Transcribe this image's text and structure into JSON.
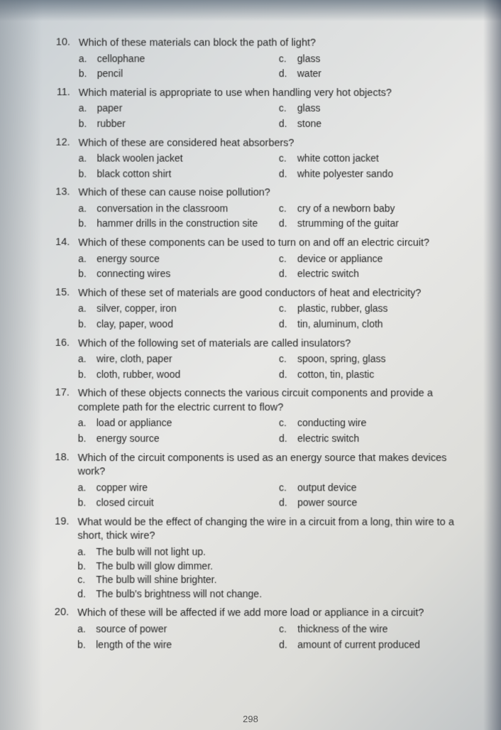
{
  "page_number": "298",
  "questions": [
    {
      "num": "10.",
      "text": "Which of these materials can block the path of light?",
      "layout": "grid",
      "opts": [
        {
          "l": "a.",
          "t": "cellophane"
        },
        {
          "l": "c.",
          "t": "glass"
        },
        {
          "l": "b.",
          "t": "pencil"
        },
        {
          "l": "d.",
          "t": "water"
        }
      ]
    },
    {
      "num": "11.",
      "text": "Which material is appropriate to use when handling very hot objects?",
      "layout": "grid",
      "opts": [
        {
          "l": "a.",
          "t": "paper"
        },
        {
          "l": "c.",
          "t": "glass"
        },
        {
          "l": "b.",
          "t": "rubber"
        },
        {
          "l": "d.",
          "t": "stone"
        }
      ]
    },
    {
      "num": "12.",
      "text": "Which of these are considered heat absorbers?",
      "layout": "grid",
      "opts": [
        {
          "l": "a.",
          "t": "black woolen jacket"
        },
        {
          "l": "c.",
          "t": "white cotton jacket"
        },
        {
          "l": "b.",
          "t": "black cotton shirt"
        },
        {
          "l": "d.",
          "t": "white polyester sando"
        }
      ]
    },
    {
      "num": "13.",
      "text": "Which of these can cause noise pollution?",
      "layout": "grid",
      "opts": [
        {
          "l": "a.",
          "t": "conversation in the classroom"
        },
        {
          "l": "c.",
          "t": "cry of a newborn baby"
        },
        {
          "l": "b.",
          "t": "hammer drills in the construction site"
        },
        {
          "l": "d.",
          "t": "strumming of the guitar"
        }
      ]
    },
    {
      "num": "14.",
      "text": "Which of these components can be used to turn on and off an electric circuit?",
      "layout": "grid",
      "opts": [
        {
          "l": "a.",
          "t": "energy source"
        },
        {
          "l": "c.",
          "t": "device or appliance"
        },
        {
          "l": "b.",
          "t": "connecting wires"
        },
        {
          "l": "d.",
          "t": "electric switch"
        }
      ]
    },
    {
      "num": "15.",
      "text": "Which of these set of materials are good conductors of heat and electricity?",
      "layout": "grid",
      "opts": [
        {
          "l": "a.",
          "t": "silver, copper, iron"
        },
        {
          "l": "c.",
          "t": "plastic, rubber, glass"
        },
        {
          "l": "b.",
          "t": "clay, paper, wood"
        },
        {
          "l": "d.",
          "t": "tin, aluminum, cloth"
        }
      ]
    },
    {
      "num": "16.",
      "text": "Which of the following set of materials are called insulators?",
      "layout": "grid",
      "opts": [
        {
          "l": "a.",
          "t": "wire, cloth, paper"
        },
        {
          "l": "c.",
          "t": "spoon, spring, glass"
        },
        {
          "l": "b.",
          "t": "cloth, rubber, wood"
        },
        {
          "l": "d.",
          "t": "cotton, tin, plastic"
        }
      ]
    },
    {
      "num": "17.",
      "text": "Which of these objects connects the various circuit components and provide a complete path for the electric current to flow?",
      "layout": "grid",
      "opts": [
        {
          "l": "a.",
          "t": "load or appliance"
        },
        {
          "l": "c.",
          "t": "conducting wire"
        },
        {
          "l": "b.",
          "t": "energy source"
        },
        {
          "l": "d.",
          "t": "electric switch"
        }
      ]
    },
    {
      "num": "18.",
      "text": "Which of the circuit components is used as an energy source that makes devices work?",
      "layout": "grid",
      "opts": [
        {
          "l": "a.",
          "t": "copper wire"
        },
        {
          "l": "c.",
          "t": "output device"
        },
        {
          "l": "b.",
          "t": "closed circuit"
        },
        {
          "l": "d.",
          "t": "power source"
        }
      ]
    },
    {
      "num": "19.",
      "text": "What would be the effect of changing the wire in a circuit from a long, thin wire to a short, thick wire?",
      "layout": "single",
      "opts": [
        {
          "l": "a.",
          "t": "The bulb will not light up."
        },
        {
          "l": "b.",
          "t": "The bulb will glow dimmer."
        },
        {
          "l": "c.",
          "t": "The bulb will shine brighter."
        },
        {
          "l": "d.",
          "t": "The bulb's brightness will not change."
        }
      ]
    },
    {
      "num": "20.",
      "text": "Which of these will be affected if we add more load or appliance in a circuit?",
      "layout": "grid",
      "opts": [
        {
          "l": "a.",
          "t": "source of power"
        },
        {
          "l": "c.",
          "t": "thickness of the wire"
        },
        {
          "l": "b.",
          "t": "length of the wire"
        },
        {
          "l": "d.",
          "t": "amount of current produced"
        }
      ]
    }
  ]
}
